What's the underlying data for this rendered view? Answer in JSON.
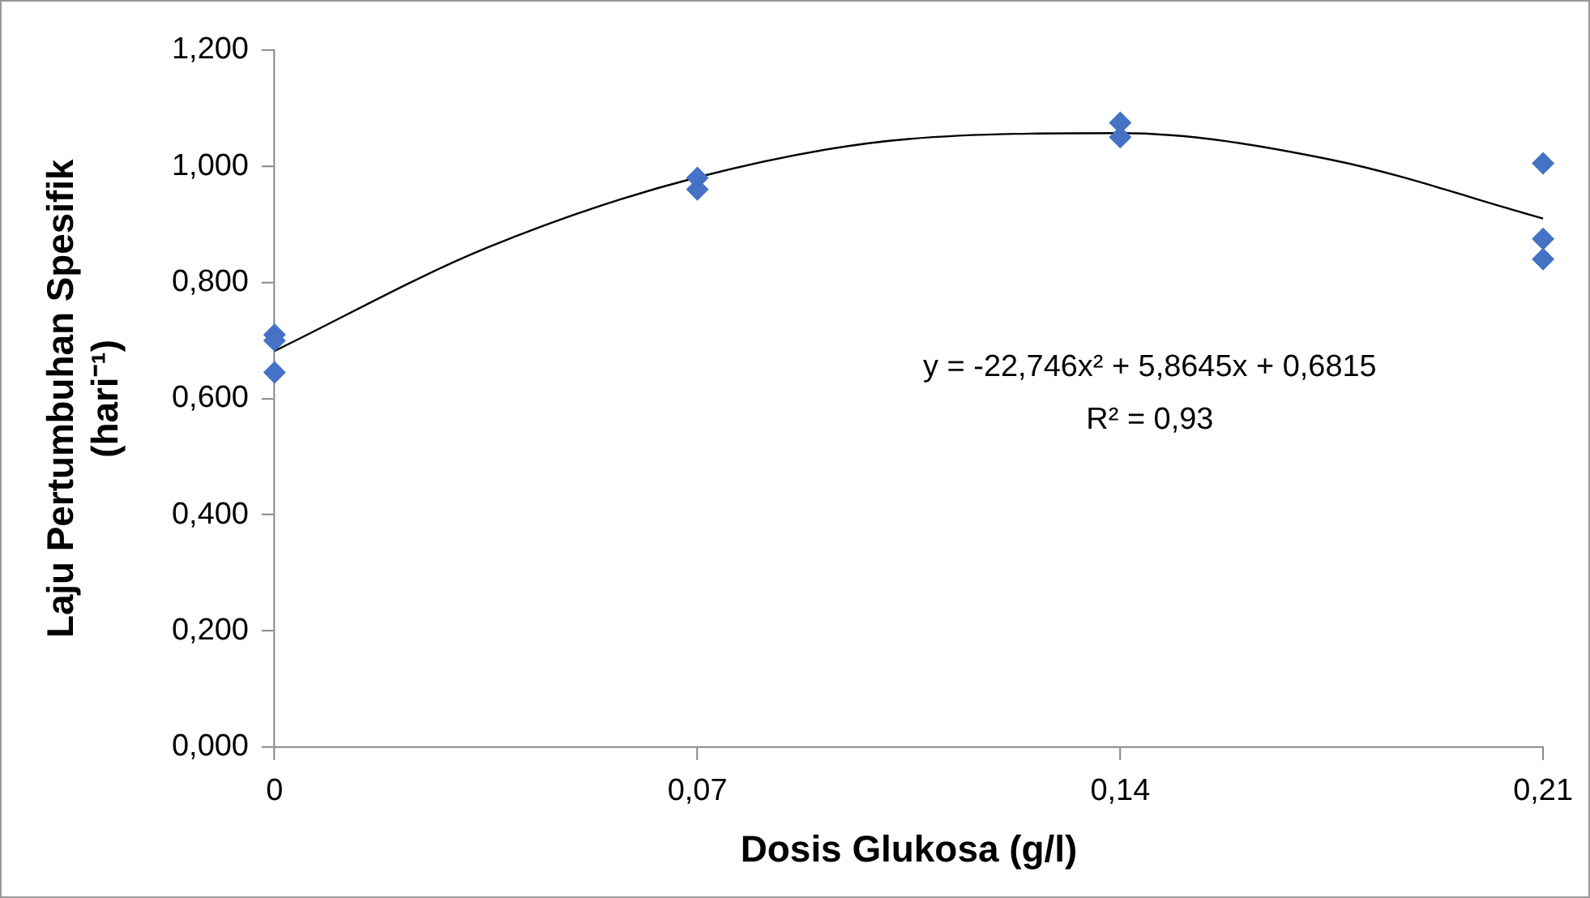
{
  "chart_data": {
    "type": "scatter",
    "xlabel": "Dosis Glukosa (g/l)",
    "ylabel": "Laju Pertumbuhan Spesifik (hari⁻¹)",
    "xlim": [
      0,
      0.21
    ],
    "xticks": [
      {
        "value": 0,
        "label": "0"
      },
      {
        "value": 0.07,
        "label": "0,07"
      },
      {
        "value": 0.14,
        "label": "0,14"
      },
      {
        "value": 0.21,
        "label": "0,21"
      }
    ],
    "ylim": [
      0,
      1.2
    ],
    "yticks": [
      {
        "value": 0,
        "label": "0,000"
      },
      {
        "value": 0.2,
        "label": "0,200"
      },
      {
        "value": 0.4,
        "label": "0,400"
      },
      {
        "value": 0.6,
        "label": "0,600"
      },
      {
        "value": 0.8,
        "label": "0,800"
      },
      {
        "value": 1,
        "label": "1,000"
      },
      {
        "value": 1.2,
        "label": "1,200"
      }
    ],
    "series": [
      {
        "type": "scatter",
        "color": "#4472c4",
        "x": [
          0,
          0,
          0,
          0.07,
          0.07,
          0.14,
          0.14,
          0.21,
          0.21,
          0.21
        ],
        "values": [
          0.71,
          0.7,
          0.645,
          0.98,
          0.96,
          1.075,
          1.05,
          1.005,
          0.875,
          0.84
        ]
      },
      {
        "type": "line",
        "color": "#000000",
        "marker": "none",
        "x": [
          0,
          0.035,
          0.07,
          0.105,
          0.14,
          0.175,
          0.21
        ],
        "values": [
          0.682,
          0.859,
          0.981,
          1.047,
          1.057,
          1.011,
          0.91
        ]
      }
    ],
    "marker": "diamond",
    "grid": false,
    "legend": false,
    "annotations": [
      "y = -22,746x² + 5,8645x + 0,6815",
      "R² = 0,93"
    ]
  }
}
